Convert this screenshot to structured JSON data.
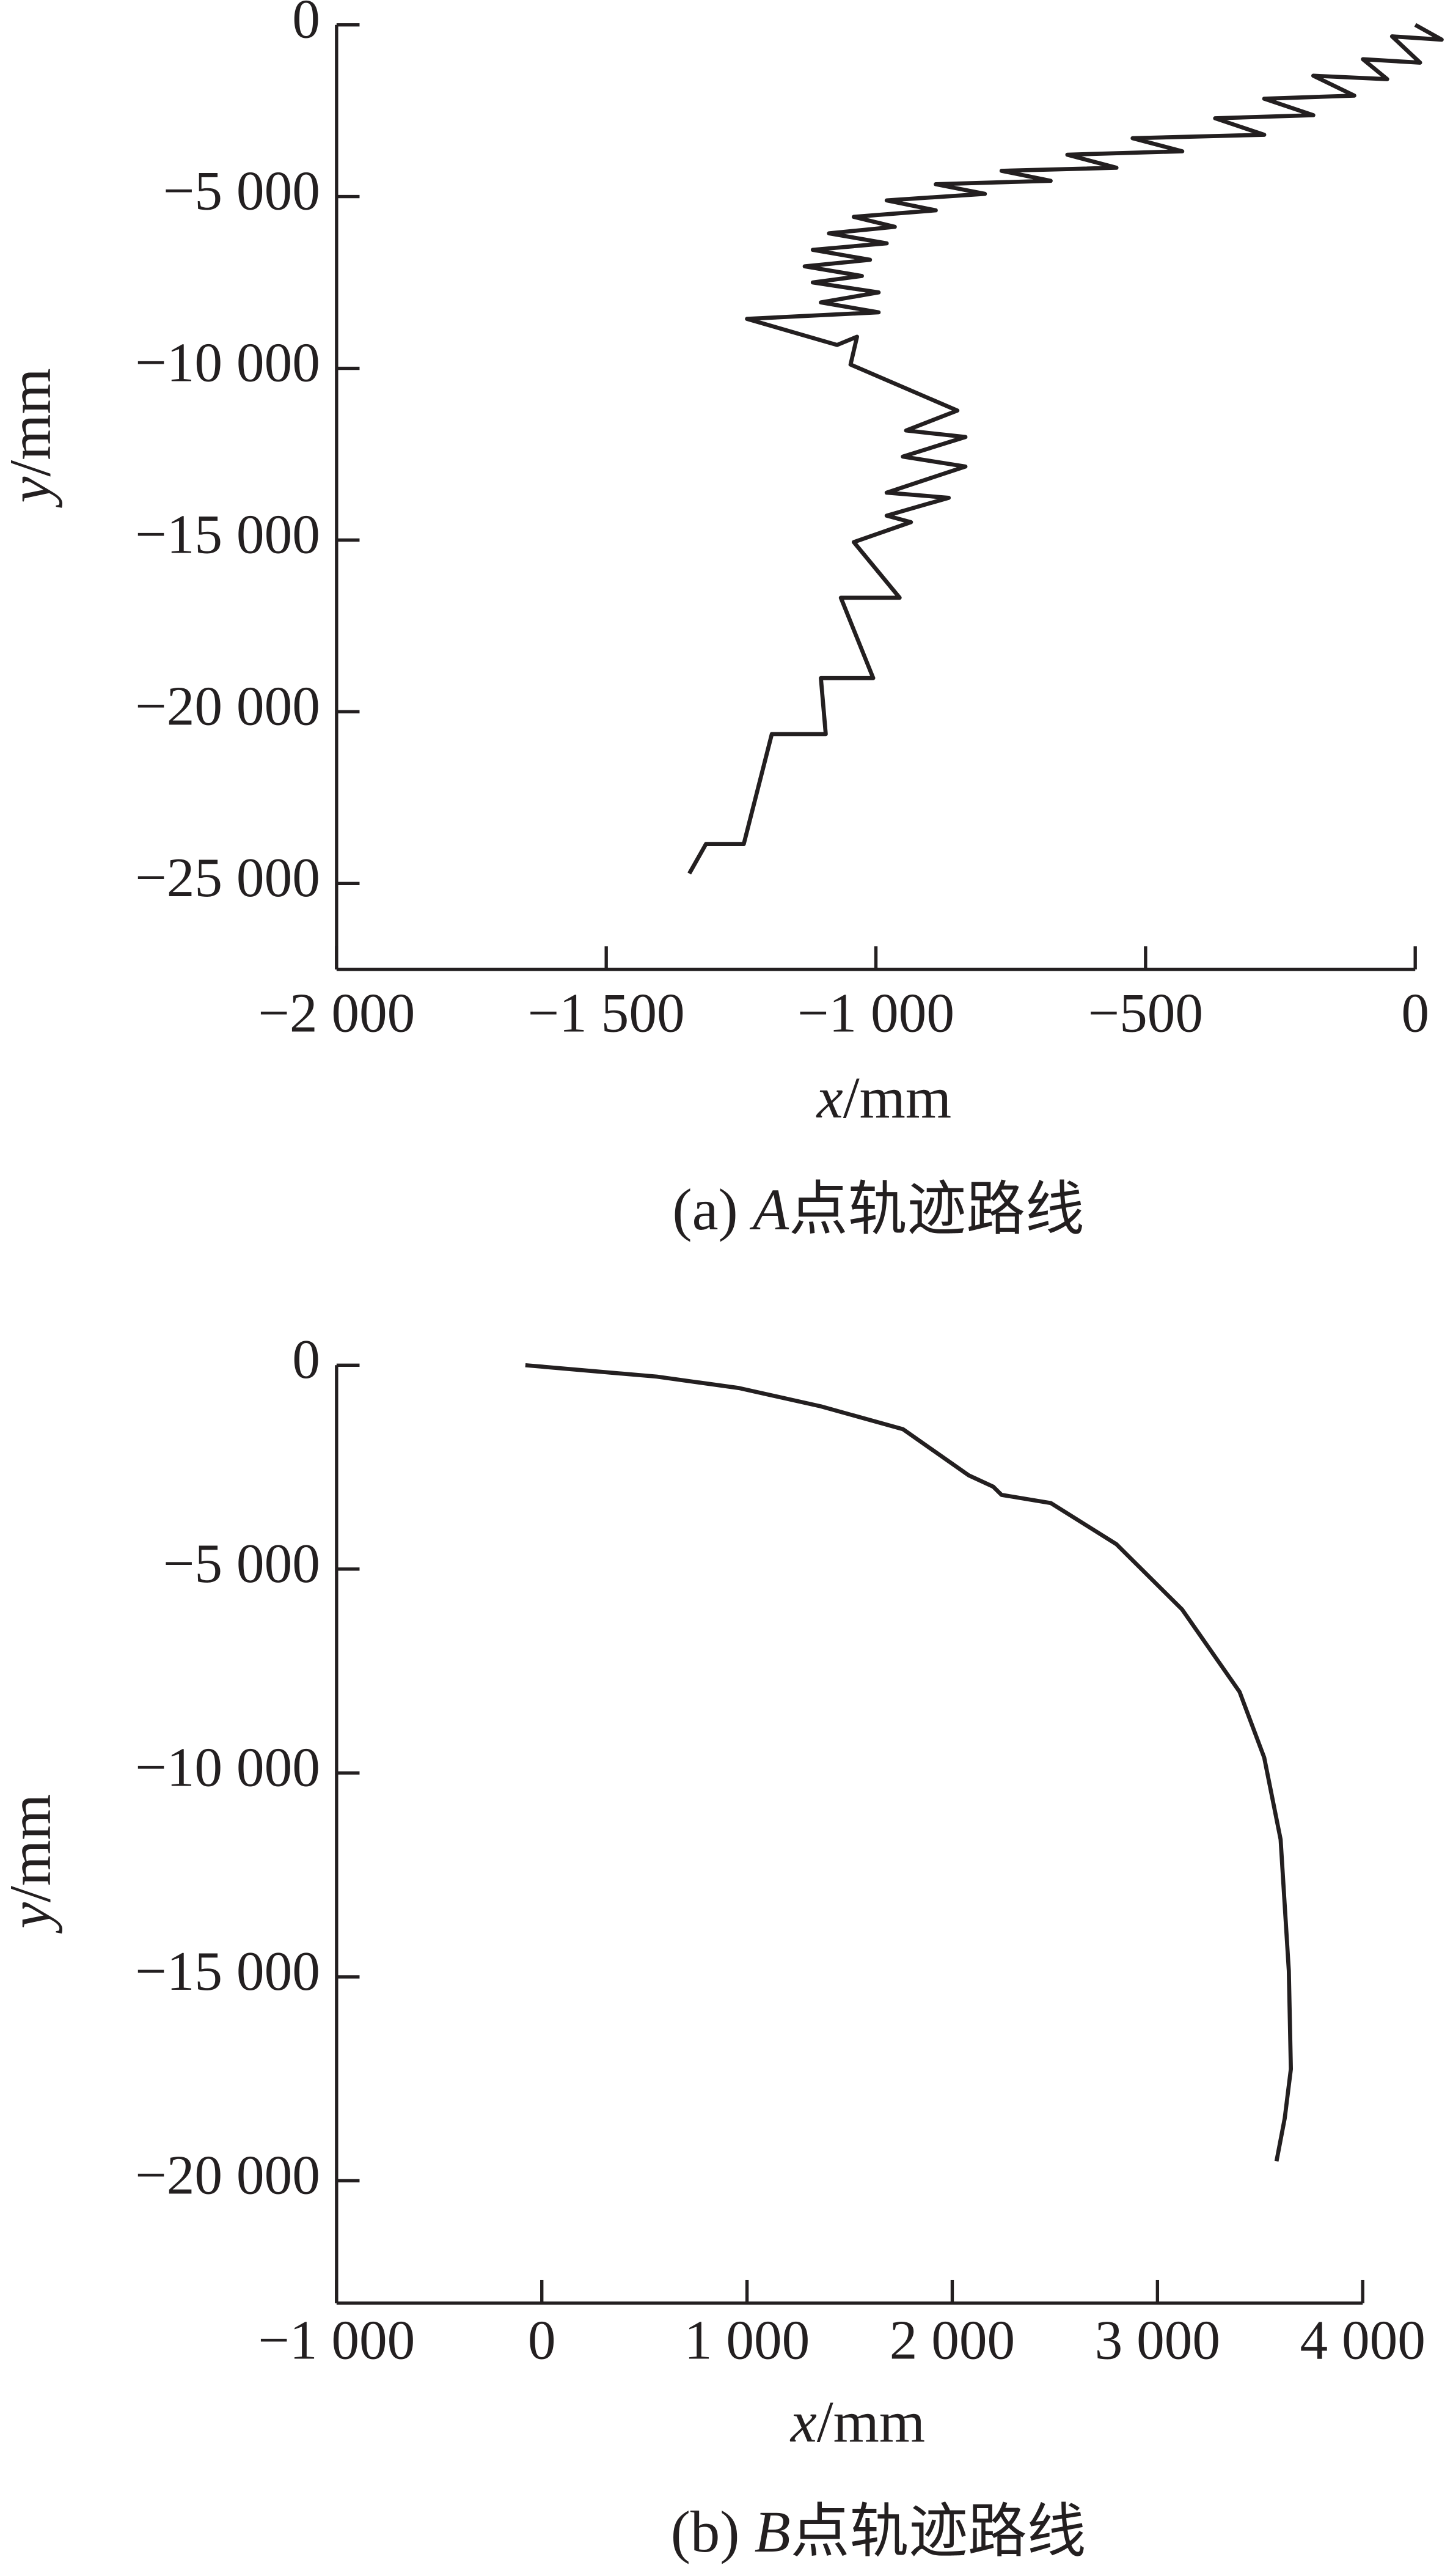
{
  "chart_data": [
    {
      "type": "line",
      "title": "(a) A点轨迹路线",
      "x_label": "x/mm",
      "y_label": "y/mm",
      "xlim": [
        -2000,
        0
      ],
      "ylim": [
        -27500,
        0
      ],
      "xticks": [
        {
          "value": -2000,
          "label": "−2 000"
        },
        {
          "value": -1500,
          "label": "−1 500"
        },
        {
          "value": -1000,
          "label": "−1 000"
        },
        {
          "value": -500,
          "label": "−500"
        },
        0
      ],
      "yticks": [
        0,
        {
          "value": -5000,
          "label": "−5 000"
        },
        {
          "value": -10000,
          "label": "−10 000"
        },
        {
          "value": -15000,
          "label": "−15 000"
        },
        {
          "value": -20000,
          "label": "−20 000"
        },
        {
          "value": -25000,
          "label": "−25 000"
        }
      ],
      "x": [
        0,
        49,
        -43,
        9,
        -97,
        -52,
        -189,
        -113,
        -280,
        -189,
        -371,
        -280,
        -524,
        -432,
        -645,
        -554,
        -767,
        -676,
        -889,
        -798,
        -980,
        -889,
        -1041,
        -965,
        -1087,
        -980,
        -1117,
        -1011,
        -1132,
        -1026,
        -1117,
        -995,
        -1102,
        -995,
        -1239,
        -1072,
        -1035,
        -1047,
        -849,
        -944,
        -834,
        -950,
        -834,
        -980,
        -865,
        -980,
        -935,
        -1041,
        -956,
        -1065,
        -1005,
        -1102,
        -1093,
        -1193,
        -1245,
        -1315,
        -1346
      ],
      "series": [
        {
          "color": "#231f20",
          "values": [
            0,
            -430,
            -335,
            -1100,
            -1000,
            -1580,
            -1480,
            -2060,
            -2150,
            -2630,
            -2720,
            -3200,
            -3300,
            -3680,
            -3780,
            -4160,
            -4250,
            -4540,
            -4640,
            -4920,
            -5110,
            -5400,
            -5590,
            -5880,
            -6070,
            -6360,
            -6550,
            -6840,
            -7030,
            -7310,
            -7500,
            -7790,
            -8080,
            -8370,
            -8560,
            -9320,
            -9080,
            -9890,
            -11230,
            -11810,
            -12000,
            -12570,
            -12860,
            -13620,
            -13770,
            -14290,
            -14480,
            -15060,
            -16680,
            -16680,
            -19020,
            -19020,
            -20650,
            -20650,
            -23850,
            -23850,
            -24710
          ]
        }
      ]
    },
    {
      "type": "line",
      "title": "(b) B点轨迹路线",
      "x_label": "x/mm",
      "y_label": "y/mm",
      "xlim": [
        -1000,
        4000
      ],
      "ylim": [
        -23000,
        0
      ],
      "xticks": [
        {
          "value": -1000,
          "label": "−1 000"
        },
        0,
        {
          "value": 1000,
          "label": "1 000"
        },
        {
          "value": 2000,
          "label": "2 000"
        },
        {
          "value": 3000,
          "label": "3 000"
        },
        {
          "value": 4000,
          "label": "4 000"
        }
      ],
      "yticks": [
        0,
        {
          "value": -5000,
          "label": "−5 000"
        },
        {
          "value": -10000,
          "label": "−10 000"
        },
        {
          "value": -15000,
          "label": "−15 000"
        },
        {
          "value": -20000,
          "label": "−20 000"
        }
      ],
      "x": [
        -80,
        560,
        960,
        1360,
        1760,
        2080,
        2200,
        2240,
        2480,
        2800,
        3120,
        3400,
        3520,
        3600,
        3640,
        3650,
        3620,
        3580
      ],
      "series": [
        {
          "color": "#231f20",
          "values": [
            0,
            -280,
            -560,
            -1010,
            -1570,
            -2700,
            -2980,
            -3180,
            -3380,
            -4390,
            -5990,
            -8010,
            -9620,
            -11630,
            -14850,
            -17260,
            -18470,
            -19520
          ]
        }
      ]
    }
  ]
}
